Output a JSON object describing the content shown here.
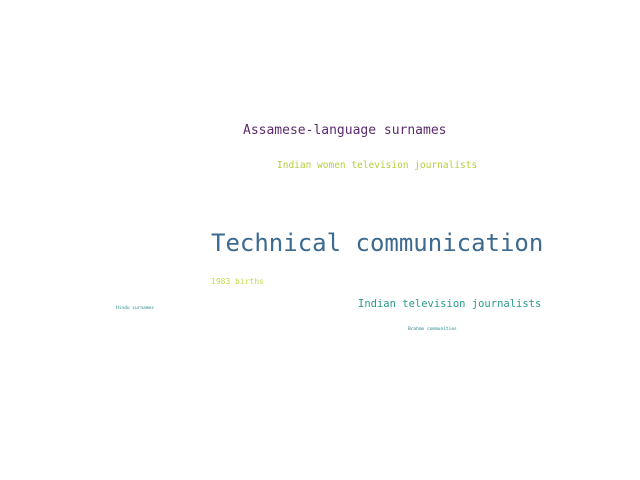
{
  "word_cloud": {
    "words": [
      {
        "text": "Assamese-language surnames",
        "color": "#5b2a6e"
      },
      {
        "text": "Indian women television journalists",
        "color": "#b5cf3b"
      },
      {
        "text": "Technical communication",
        "color": "#3d6a8f"
      },
      {
        "text": "1983 births",
        "color": "#c8d94a"
      },
      {
        "text": "Indian television journalists",
        "color": "#2a9a8a"
      },
      {
        "text": "Hindu surnames",
        "color": "#2a8a8c"
      },
      {
        "text": "Brahmo communities",
        "color": "#2a8a8c"
      }
    ]
  }
}
